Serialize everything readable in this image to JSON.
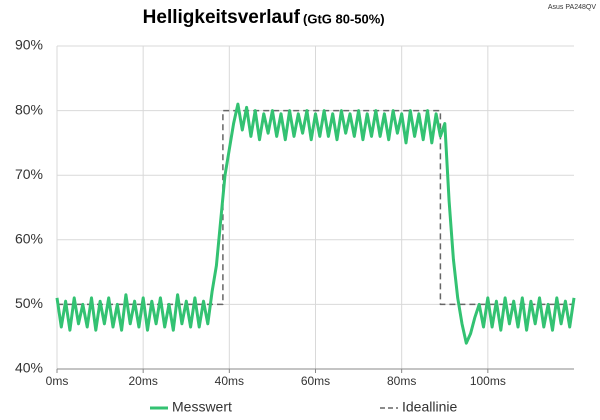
{
  "chart_data": {
    "type": "line",
    "title": "Helligkeitsverlauf",
    "subtitle": "(GtG 80-50%)",
    "annotation": "Asus PA248QV",
    "xlim": [
      0,
      120
    ],
    "ylim": [
      40,
      90
    ],
    "xticks": [
      {
        "value": 0,
        "label": "0ms"
      },
      {
        "value": 20,
        "label": "20ms"
      },
      {
        "value": 40,
        "label": "40ms"
      },
      {
        "value": 60,
        "label": "60ms"
      },
      {
        "value": 80,
        "label": "80ms"
      },
      {
        "value": 100,
        "label": "100ms"
      }
    ],
    "yticks": [
      {
        "value": 40,
        "label": "40%"
      },
      {
        "value": 50,
        "label": "50%"
      },
      {
        "value": 60,
        "label": "60%"
      },
      {
        "value": 70,
        "label": "70%"
      },
      {
        "value": 80,
        "label": "80%"
      },
      {
        "value": 90,
        "label": "90%"
      }
    ],
    "grid": true,
    "legend": "bottom",
    "series": [
      {
        "name": "Messwert",
        "color": "#33c272",
        "dash": false,
        "x": [
          0,
          1,
          2,
          3,
          4,
          5,
          6,
          7,
          8,
          9,
          10,
          11,
          12,
          13,
          14,
          15,
          16,
          17,
          18,
          19,
          20,
          21,
          22,
          23,
          24,
          25,
          26,
          27,
          28,
          29,
          30,
          31,
          32,
          33,
          34,
          35,
          36,
          37,
          38,
          39,
          40,
          41,
          42,
          43,
          44,
          45,
          46,
          47,
          48,
          49,
          50,
          51,
          52,
          53,
          54,
          55,
          56,
          57,
          58,
          59,
          60,
          61,
          62,
          63,
          64,
          65,
          66,
          67,
          68,
          69,
          70,
          71,
          72,
          73,
          74,
          75,
          76,
          77,
          78,
          79,
          80,
          81,
          82,
          83,
          84,
          85,
          86,
          87,
          88,
          89,
          90,
          91,
          92,
          93,
          94,
          95,
          96,
          97,
          98,
          99,
          100,
          101,
          102,
          103,
          104,
          105,
          106,
          107,
          108,
          109,
          110,
          111,
          112,
          113,
          114,
          115,
          116,
          117,
          118,
          119,
          120
        ],
        "values": [
          51,
          46.5,
          50.5,
          46,
          51,
          47,
          50,
          46.5,
          51,
          46,
          50.5,
          47,
          51,
          46.5,
          50,
          46,
          51.5,
          47,
          50.5,
          46.5,
          51,
          46,
          50.5,
          47,
          51,
          46.5,
          50,
          46,
          51.5,
          47,
          50.5,
          46.5,
          51,
          46.5,
          50.5,
          47,
          52,
          56,
          63,
          70,
          74,
          78,
          81,
          77,
          80.5,
          76,
          80,
          75.5,
          79.5,
          76.5,
          80,
          76,
          79.5,
          75.5,
          80,
          76,
          79.5,
          76.5,
          80,
          75.5,
          79.5,
          76,
          80,
          76,
          79.5,
          75.5,
          80,
          76.5,
          79.5,
          76,
          80,
          75.5,
          79.5,
          76,
          80,
          76,
          79.5,
          75.5,
          80,
          76.5,
          79.5,
          75,
          80,
          76,
          79.5,
          75.5,
          80,
          75,
          79.5,
          76,
          78,
          66,
          57,
          51,
          47,
          44,
          45.5,
          48,
          50,
          46.5,
          51,
          46.5,
          50.5,
          46,
          51,
          47,
          50.5,
          46.5,
          51,
          46,
          50.5,
          47,
          51,
          46.5,
          50,
          46,
          51,
          47,
          50.5,
          46.5,
          51
        ]
      },
      {
        "name": "Ideallinie",
        "color": "#666666",
        "dash": true,
        "x": [
          0,
          38.5,
          38.5,
          89,
          89,
          120
        ],
        "values": [
          50,
          50,
          80,
          80,
          50,
          50
        ]
      }
    ]
  }
}
